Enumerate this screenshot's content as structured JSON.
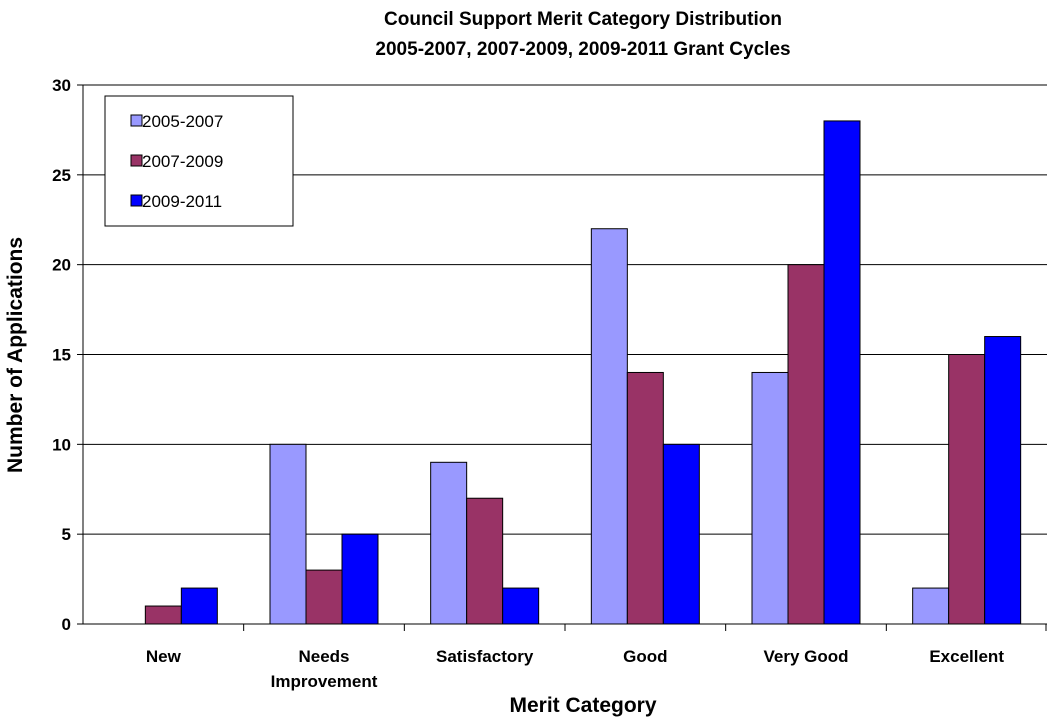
{
  "chart_data": {
    "type": "bar",
    "title": "Council Support Merit Category Distribution",
    "subtitle": "2005-2007, 2007-2009, 2009-2011 Grant Cycles",
    "xlabel": "Merit Category",
    "ylabel": "Number of Applications",
    "ylim": [
      0,
      30
    ],
    "yticks": [
      0,
      5,
      10,
      15,
      20,
      25,
      30
    ],
    "grid": true,
    "legend_position": "top-left",
    "categories": [
      "New",
      "Needs Improvement",
      "Satisfactory",
      "Good",
      "Very Good",
      "Excellent"
    ],
    "category_lines": [
      [
        "New"
      ],
      [
        "Needs",
        "Improvement"
      ],
      [
        "Satisfactory"
      ],
      [
        "Good"
      ],
      [
        "Very Good"
      ],
      [
        "Excellent"
      ]
    ],
    "series": [
      {
        "name": "2005-2007",
        "color": "#9999FF",
        "values": [
          0,
          10,
          9,
          22,
          14,
          2
        ]
      },
      {
        "name": "2007-2009",
        "color": "#993366",
        "values": [
          1,
          3,
          7,
          14,
          20,
          15
        ]
      },
      {
        "name": "2009-2011",
        "color": "#0000FF",
        "values": [
          2,
          5,
          2,
          10,
          28,
          16
        ]
      }
    ]
  }
}
